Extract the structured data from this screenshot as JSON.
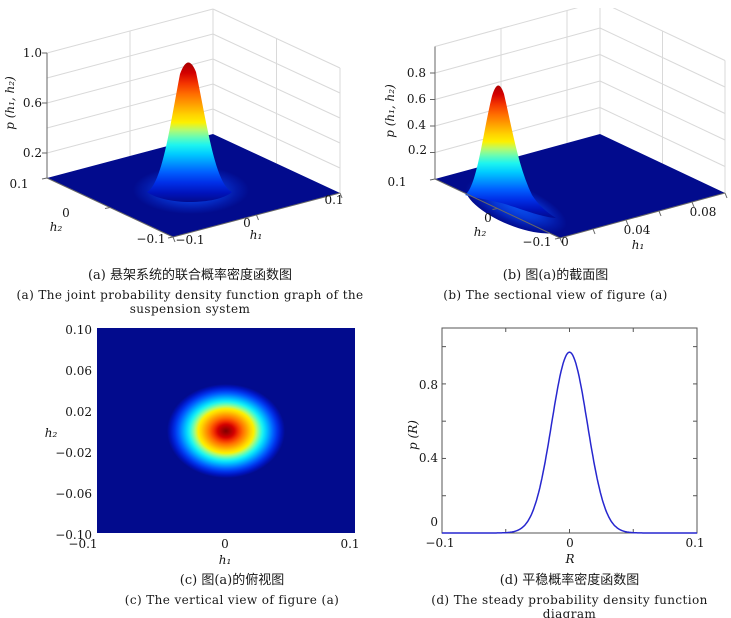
{
  "colors": {
    "floor_blue": "#020b8d",
    "line_blue": "#2727cf",
    "grid_gray": "#d9d9d9",
    "axis_gray": "#666666",
    "jet_stops": [
      {
        "o": 0.0,
        "c": "#7f0000"
      },
      {
        "o": 0.07,
        "c": "#a70000"
      },
      {
        "o": 0.14,
        "c": "#d40000"
      },
      {
        "o": 0.21,
        "c": "#f43500"
      },
      {
        "o": 0.28,
        "c": "#ff6d00"
      },
      {
        "o": 0.35,
        "c": "#ffa000"
      },
      {
        "o": 0.42,
        "c": "#ffd300"
      },
      {
        "o": 0.47,
        "c": "#fdf000"
      },
      {
        "o": 0.52,
        "c": "#b4fb6e"
      },
      {
        "o": 0.57,
        "c": "#63fcb8"
      },
      {
        "o": 0.62,
        "c": "#1df4f0"
      },
      {
        "o": 0.68,
        "c": "#00ccff"
      },
      {
        "o": 0.74,
        "c": "#0096ff"
      },
      {
        "o": 0.8,
        "c": "#0060ff"
      },
      {
        "o": 0.87,
        "c": "#0030e8"
      },
      {
        "o": 0.94,
        "c": "#0013bc"
      },
      {
        "o": 1.0,
        "c": "#020b8d"
      }
    ]
  },
  "panels": {
    "a": {
      "caption_zh": "(a) 悬架系统的联合概率密度函数图",
      "caption_en": "(a) The joint probability density function graph of the suspension system",
      "zlabel": "p (h₁, h₂)",
      "xlabel": "h₁",
      "ylabel": "h₂",
      "z_ticks": [
        "1.0",
        "0.6",
        "0.2"
      ],
      "x_ticks": [
        "−0.1",
        "0",
        "0.1"
      ],
      "y_ticks": [
        "0.1",
        "0",
        "−0.1"
      ]
    },
    "b": {
      "caption_zh": "(b) 图(a)的截面图",
      "caption_en": "(b) The sectional view of figure (a)",
      "zlabel": "p (h₁, h₂)",
      "xlabel": "h₁",
      "ylabel": "h₂",
      "z_ticks": [
        "0.8",
        "0.6",
        "0.4",
        "0.2"
      ],
      "x_ticks": [
        "0",
        "0.04",
        "0.08"
      ],
      "y_ticks": [
        "0.1",
        "0",
        "−0.1"
      ]
    },
    "c": {
      "caption_zh": "(c) 图(a)的俯视图",
      "caption_en": "(c) The vertical view of figure (a)",
      "xlabel": "h₁",
      "ylabel": "h₂",
      "x_ticks": [
        "−0.1",
        "0",
        "0.1"
      ],
      "y_ticks": [
        "0.10",
        "0.06",
        "0.02",
        "−0.02",
        "−0.06",
        "−0.10"
      ]
    },
    "d": {
      "caption_zh": "(d) 平稳概率密度函数图",
      "caption_en": "(d) The steady probability density function diagram",
      "xlabel": "R",
      "ylabel": "p (R)",
      "x_ticks": [
        "−0.1",
        "0",
        "0.1"
      ],
      "y_ticks": [
        "0.8",
        "0.4",
        "0"
      ]
    }
  },
  "chart_data": [
    {
      "type": "surface",
      "panel": "a",
      "title_zh": "(a) 悬架系统的联合概率密度函数图",
      "title_en": "(a) The joint probability density function graph of the suspension system",
      "xlabel": "h₁",
      "ylabel": "h₂",
      "zlabel": "p (h₁, h₂)",
      "x_range": [
        -0.1,
        0.1
      ],
      "y_range": [
        -0.1,
        0.1
      ],
      "z_range": [
        0,
        1.0
      ],
      "x_ticks": [
        -0.1,
        0,
        0.1
      ],
      "y_ticks": [
        0.1,
        0,
        -0.1
      ],
      "z_ticks": [
        0.2,
        0.6,
        1.0
      ],
      "surface": "bivariate Gaussian joint probability density, peak 0.97 at (0,0), sigma 0.014",
      "colormap": "jet",
      "grid": true
    },
    {
      "type": "surface",
      "panel": "b",
      "title_zh": "(b) 图(a)的截面图",
      "title_en": "(b) The sectional view of figure (a)",
      "xlabel": "h₁",
      "ylabel": "h₂",
      "zlabel": "p (h₁, h₂)",
      "x_range": [
        0,
        0.1
      ],
      "y_range": [
        -0.1,
        0.1
      ],
      "z_range": [
        0,
        1.0
      ],
      "x_ticks": [
        0,
        0.04,
        0.08
      ],
      "y_ticks": [
        0.1,
        0,
        -0.1
      ],
      "z_ticks": [
        0.2,
        0.4,
        0.6,
        0.8
      ],
      "surface": "same joint PDF sectioned at h₁ = 0, exposed cross-section ridge peak about 0.78",
      "colormap": "jet",
      "grid": true
    },
    {
      "type": "heatmap",
      "panel": "c",
      "title_zh": "(c) 图(a)的俯视图",
      "title_en": "(c) The vertical view of figure (a)",
      "xlabel": "h₁",
      "ylabel": "h₂",
      "x_range": [
        -0.1,
        0.1
      ],
      "y_range": [
        -0.1,
        0.1
      ],
      "x_ticks": [
        -0.1,
        0,
        0.1
      ],
      "y_ticks": [
        0.1,
        0.06,
        0.02,
        -0.02,
        -0.06,
        -0.1
      ],
      "center": [
        0,
        0
      ],
      "sigma": 0.014,
      "surface": "top view of joint PDF: concentric jet-colored Gaussian spot centred at (0,0) on dark blue background",
      "colormap": "jet"
    },
    {
      "type": "line",
      "panel": "d",
      "title_zh": "(d) 平稳概率密度函数图",
      "title_en": "(d) The steady probability density function diagram",
      "xlabel": "R",
      "ylabel": "p (R)",
      "xlim": [
        -0.1,
        0.1
      ],
      "ylim": [
        0,
        1.1
      ],
      "x_ticks_labeled": [
        -0.1,
        0,
        0.1
      ],
      "x_ticks_all": [
        -0.1,
        -0.05,
        0,
        0.05,
        0.1
      ],
      "y_ticks_labeled": [
        0,
        0.4,
        0.8
      ],
      "y_ticks_all": [
        0,
        0.2,
        0.4,
        0.6,
        0.8,
        1.0
      ],
      "curve": "Gaussian",
      "mean": 0,
      "peak": 0.97,
      "sigma": 0.014,
      "line_color": "#2727cf"
    }
  ]
}
